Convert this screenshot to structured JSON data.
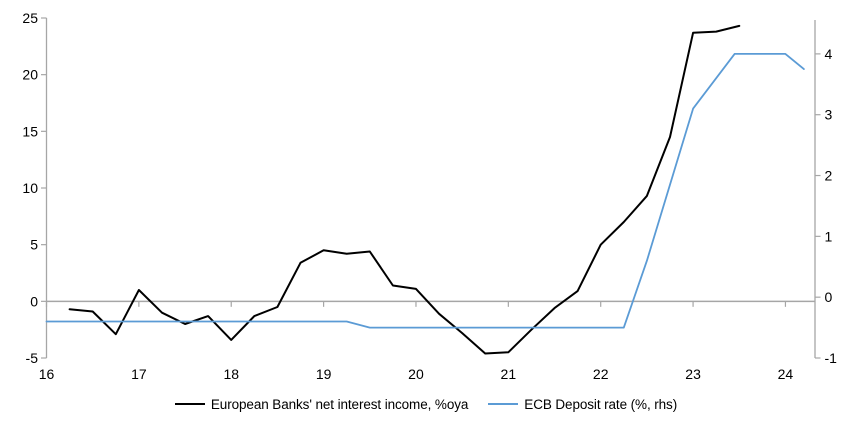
{
  "chart_data": {
    "type": "line",
    "title": "",
    "series": [
      {
        "name": "European Banks' net interest income, %oya",
        "axis": "left",
        "color": "#000000",
        "stroke_width": 2,
        "x": [
          16.25,
          16.5,
          16.75,
          17.0,
          17.25,
          17.5,
          17.75,
          18.0,
          18.25,
          18.5,
          18.75,
          19.0,
          19.25,
          19.5,
          19.75,
          20.0,
          20.25,
          20.5,
          20.75,
          21.0,
          21.25,
          21.5,
          21.75,
          22.0,
          22.25,
          22.5,
          22.75,
          23.0,
          23.25,
          23.5
        ],
        "values": [
          -0.7,
          -0.9,
          -2.9,
          1.0,
          -1.0,
          -2.0,
          -1.3,
          -3.4,
          -1.3,
          -0.5,
          3.4,
          4.5,
          4.2,
          4.4,
          1.4,
          1.1,
          -1.1,
          -2.8,
          -4.6,
          -4.5,
          -2.5,
          -0.6,
          0.9,
          5.0,
          7.0,
          9.3,
          14.5,
          23.7,
          23.8,
          24.3
        ]
      },
      {
        "name": "ECB Deposit rate (%, rhs)",
        "axis": "right",
        "color": "#5B9BD5",
        "stroke_width": 1.8,
        "x": [
          16.0,
          19.25,
          19.5,
          22.25,
          22.5,
          23.0,
          23.45,
          24.0,
          24.2
        ],
        "values": [
          -0.4,
          -0.4,
          -0.5,
          -0.5,
          0.6,
          3.1,
          4.0,
          4.0,
          3.75
        ]
      }
    ],
    "x_axis": {
      "tick_labels": [
        "16",
        "17",
        "18",
        "19",
        "20",
        "21",
        "22",
        "23",
        "24"
      ],
      "tick_values": [
        16,
        17,
        18,
        19,
        20,
        21,
        22,
        23,
        24
      ],
      "range": [
        16,
        24.32
      ]
    },
    "y_axis_left": {
      "tick_labels": [
        "25",
        "20",
        "15",
        "10",
        "5",
        "0",
        "-5"
      ],
      "tick_values": [
        25,
        20,
        15,
        10,
        5,
        0,
        -5
      ],
      "range": [
        -5,
        25
      ]
    },
    "y_axis_right": {
      "tick_labels": [
        "4",
        "3",
        "2",
        "1",
        "0",
        "-1"
      ],
      "tick_values": [
        4,
        3,
        2,
        1,
        0,
        -1
      ],
      "range": [
        -1,
        4.59
      ]
    },
    "legend": [
      {
        "label": "European Banks' net interest income, %oya",
        "color": "#000000"
      },
      {
        "label": "ECB Deposit rate (%, rhs)",
        "color": "#5B9BD5"
      }
    ],
    "legend_position": "bottom",
    "grid": "zero line only",
    "axis_color": "#A6A6A6"
  }
}
